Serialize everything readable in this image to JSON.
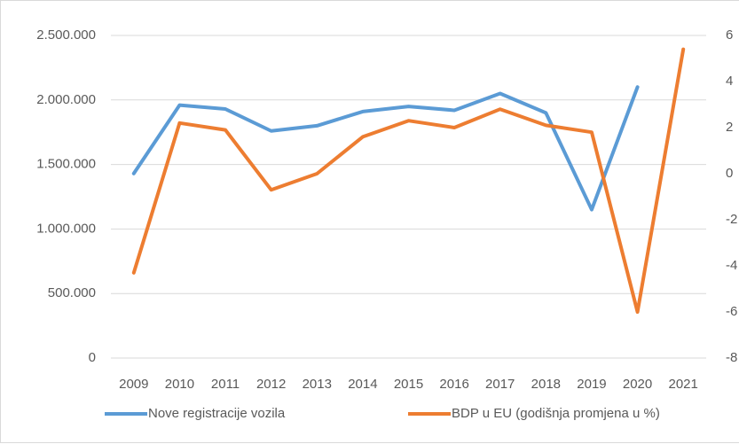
{
  "chart_data": {
    "type": "line",
    "categories": [
      "2009",
      "2010",
      "2011",
      "2012",
      "2013",
      "2014",
      "2015",
      "2016",
      "2017",
      "2018",
      "2019",
      "2020",
      "2021"
    ],
    "series": [
      {
        "name": "Nove registracije vozila",
        "color": "#5b9bd5",
        "axis": "y",
        "values": [
          1430000,
          1960000,
          1930000,
          1760000,
          1800000,
          1910000,
          1950000,
          1920000,
          2050000,
          1900000,
          1150000,
          2100000,
          null
        ]
      },
      {
        "name": "BDP u EU (godišnja promjena u %)",
        "color": "#ed7d31",
        "axis": "y2",
        "values": [
          -4.3,
          2.2,
          1.9,
          -0.7,
          0,
          1.6,
          2.3,
          2,
          2.8,
          2.1,
          1.8,
          -6,
          5.4
        ]
      }
    ],
    "ylim": [
      0,
      2500000
    ],
    "yticks": [
      {
        "value": 0,
        "label": "0"
      },
      {
        "value": 500000,
        "label": "500.000"
      },
      {
        "value": 1000000,
        "label": "1.000.000"
      },
      {
        "value": 1500000,
        "label": "1.500.000"
      },
      {
        "value": 2000000,
        "label": "2.000.000"
      },
      {
        "value": 2500000,
        "label": "2.500.000"
      }
    ],
    "y2lim": [
      -8,
      6
    ],
    "y2ticks": [
      -8,
      -6,
      -4,
      -2,
      0,
      2,
      4,
      6
    ],
    "grid": true,
    "legend": "bottom"
  }
}
